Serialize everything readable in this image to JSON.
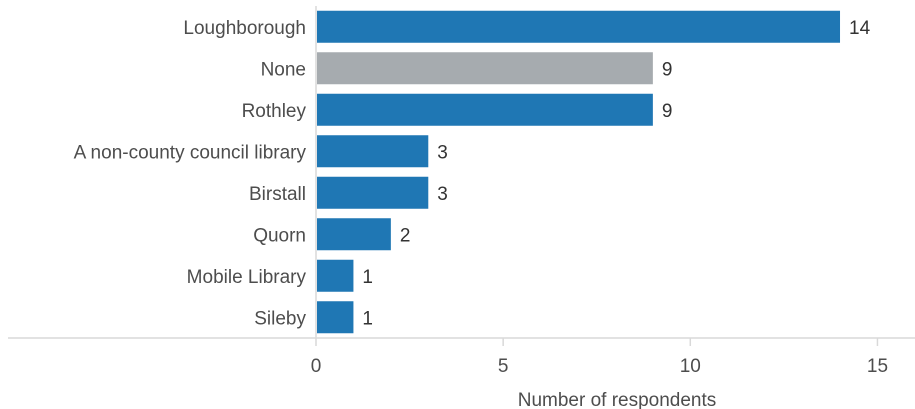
{
  "chart_data": {
    "type": "bar",
    "orientation": "horizontal",
    "categories": [
      "Loughborough",
      "None",
      "Rothley",
      "A non-county council library",
      "Birstall",
      "Quorn",
      "Mobile Library",
      "Sileby"
    ],
    "values": [
      14,
      9,
      9,
      3,
      3,
      2,
      1,
      1
    ],
    "bar_colors": [
      "#1f77b4",
      "#a6abaf",
      "#1f77b4",
      "#1f77b4",
      "#1f77b4",
      "#1f77b4",
      "#1f77b4",
      "#1f77b4"
    ],
    "title": "",
    "xlabel": "Number of respondents",
    "ylabel": "",
    "xlim": [
      0,
      16
    ],
    "xticks": [
      0,
      5,
      10,
      15
    ],
    "grid": false,
    "legend": "none",
    "colors": {
      "primary_bar": "#1f77b4",
      "highlight_bar": "#a6abaf",
      "axis_line": "#d9d9d9"
    }
  }
}
